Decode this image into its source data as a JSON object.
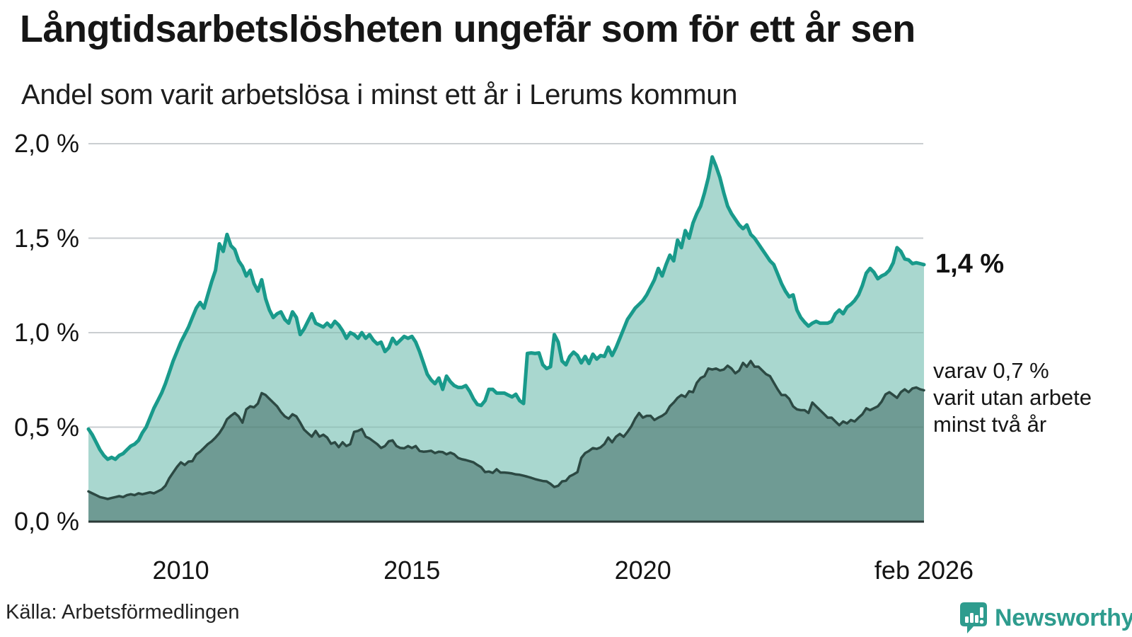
{
  "header": {
    "title": "Långtidsarbetslösheten ungefär som för ett år sen",
    "subtitle": "Andel som varit arbetslösa i minst ett år i Lerums kommun"
  },
  "chart_data": {
    "type": "area",
    "title": "Långtidsarbetslösheten ungefär som för ett år sen",
    "subtitle": "Andel som varit arbetslösa i minst ett år i Lerums kommun",
    "unit": "%",
    "frequency": "monthly",
    "x_start": "2008-01",
    "x_end": "2026-02",
    "ylim": [
      0,
      2.0
    ],
    "grid": true,
    "y_tick_labels": [
      "2,0 %",
      "1,5 %",
      "1,0 %",
      "0,5 %",
      "0,0 %"
    ],
    "y_tick_values": [
      2.0,
      1.5,
      1.0,
      0.5,
      0.0
    ],
    "x_tick_labels": [
      "2010",
      "2015",
      "2020",
      "feb 2026"
    ],
    "x_tick_months": [
      24,
      84,
      144,
      217
    ],
    "colors": {
      "grid": "#e3e3e7",
      "baseline": "#2b3a37",
      "text": "#191919",
      "brand": "#2e9c8e"
    },
    "series": [
      {
        "name": "arbetslösa minst ett år",
        "line_color": "#199a8b",
        "fill_color": "#a9d7cf",
        "line_width": 5,
        "values": [
          0.49,
          0.46,
          0.42,
          0.38,
          0.35,
          0.33,
          0.34,
          0.33,
          0.35,
          0.36,
          0.38,
          0.4,
          0.41,
          0.43,
          0.47,
          0.5,
          0.55,
          0.6,
          0.64,
          0.68,
          0.73,
          0.79,
          0.85,
          0.9,
          0.95,
          0.99,
          1.03,
          1.08,
          1.13,
          1.16,
          1.13,
          1.2,
          1.27,
          1.33,
          1.47,
          1.43,
          1.52,
          1.46,
          1.44,
          1.38,
          1.35,
          1.3,
          1.33,
          1.26,
          1.22,
          1.28,
          1.18,
          1.12,
          1.08,
          1.1,
          1.11,
          1.07,
          1.05,
          1.11,
          1.08,
          0.99,
          1.02,
          1.06,
          1.1,
          1.05,
          1.04,
          1.03,
          1.05,
          1.03,
          1.06,
          1.04,
          1.01,
          0.97,
          1.0,
          0.99,
          0.97,
          1.0,
          0.97,
          0.99,
          0.96,
          0.94,
          0.95,
          0.9,
          0.92,
          0.97,
          0.94,
          0.96,
          0.98,
          0.97,
          0.98,
          0.95,
          0.9,
          0.84,
          0.78,
          0.75,
          0.73,
          0.76,
          0.7,
          0.77,
          0.74,
          0.72,
          0.71,
          0.71,
          0.72,
          0.69,
          0.65,
          0.62,
          0.615,
          0.64,
          0.7,
          0.7,
          0.68,
          0.68,
          0.68,
          0.67,
          0.66,
          0.674,
          0.64,
          0.625,
          0.89,
          0.893,
          0.89,
          0.893,
          0.83,
          0.81,
          0.82,
          0.99,
          0.95,
          0.85,
          0.83,
          0.874,
          0.897,
          0.879,
          0.84,
          0.874,
          0.837,
          0.886,
          0.86,
          0.879,
          0.874,
          0.923,
          0.879,
          0.92,
          0.97,
          1.02,
          1.07,
          1.1,
          1.13,
          1.15,
          1.17,
          1.2,
          1.24,
          1.28,
          1.34,
          1.3,
          1.36,
          1.41,
          1.38,
          1.49,
          1.45,
          1.54,
          1.5,
          1.58,
          1.63,
          1.67,
          1.74,
          1.82,
          1.93,
          1.88,
          1.82,
          1.74,
          1.67,
          1.63,
          1.6,
          1.57,
          1.55,
          1.57,
          1.52,
          1.5,
          1.47,
          1.44,
          1.41,
          1.38,
          1.36,
          1.31,
          1.26,
          1.22,
          1.19,
          1.2,
          1.12,
          1.08,
          1.055,
          1.035,
          1.05,
          1.06,
          1.05,
          1.05,
          1.05,
          1.06,
          1.1,
          1.12,
          1.1,
          1.135,
          1.15,
          1.17,
          1.2,
          1.25,
          1.315,
          1.34,
          1.32,
          1.285,
          1.3,
          1.31,
          1.33,
          1.37,
          1.45,
          1.43,
          1.39,
          1.385,
          1.365,
          1.37,
          1.365,
          1.36
        ]
      },
      {
        "name": "varav arbetslösa minst två år",
        "line_color": "#2c4943",
        "fill_color": "#6f9b94",
        "line_width": 3.5,
        "values": [
          0.16,
          0.15,
          0.14,
          0.13,
          0.125,
          0.12,
          0.125,
          0.13,
          0.135,
          0.13,
          0.14,
          0.145,
          0.14,
          0.15,
          0.145,
          0.15,
          0.155,
          0.15,
          0.16,
          0.17,
          0.19,
          0.23,
          0.26,
          0.29,
          0.314,
          0.3,
          0.318,
          0.32,
          0.355,
          0.37,
          0.39,
          0.41,
          0.425,
          0.445,
          0.468,
          0.5,
          0.542,
          0.56,
          0.575,
          0.557,
          0.524,
          0.594,
          0.61,
          0.605,
          0.625,
          0.68,
          0.67,
          0.65,
          0.63,
          0.61,
          0.58,
          0.557,
          0.545,
          0.568,
          0.557,
          0.524,
          0.487,
          0.468,
          0.45,
          0.48,
          0.45,
          0.46,
          0.445,
          0.412,
          0.42,
          0.394,
          0.42,
          0.4,
          0.41,
          0.475,
          0.48,
          0.49,
          0.45,
          0.44,
          0.425,
          0.41,
          0.39,
          0.4,
          0.425,
          0.43,
          0.4,
          0.39,
          0.388,
          0.4,
          0.39,
          0.4,
          0.374,
          0.37,
          0.372,
          0.375,
          0.363,
          0.37,
          0.368,
          0.356,
          0.365,
          0.356,
          0.337,
          0.33,
          0.326,
          0.32,
          0.314,
          0.3,
          0.288,
          0.262,
          0.265,
          0.258,
          0.277,
          0.26,
          0.26,
          0.258,
          0.255,
          0.25,
          0.248,
          0.243,
          0.238,
          0.232,
          0.225,
          0.22,
          0.215,
          0.213,
          0.2,
          0.183,
          0.19,
          0.213,
          0.216,
          0.24,
          0.25,
          0.262,
          0.337,
          0.363,
          0.374,
          0.389,
          0.385,
          0.393,
          0.411,
          0.445,
          0.42,
          0.449,
          0.464,
          0.449,
          0.475,
          0.505,
          0.545,
          0.575,
          0.55,
          0.56,
          0.56,
          0.538,
          0.55,
          0.56,
          0.575,
          0.61,
          0.63,
          0.655,
          0.67,
          0.66,
          0.69,
          0.685,
          0.735,
          0.76,
          0.77,
          0.81,
          0.805,
          0.81,
          0.8,
          0.805,
          0.825,
          0.81,
          0.785,
          0.8,
          0.84,
          0.82,
          0.85,
          0.82,
          0.82,
          0.8,
          0.78,
          0.77,
          0.735,
          0.7,
          0.67,
          0.67,
          0.65,
          0.61,
          0.594,
          0.59,
          0.59,
          0.575,
          0.63,
          0.61,
          0.59,
          0.57,
          0.55,
          0.55,
          0.53,
          0.51,
          0.53,
          0.52,
          0.538,
          0.53,
          0.55,
          0.568,
          0.6,
          0.59,
          0.6,
          0.61,
          0.635,
          0.673,
          0.685,
          0.67,
          0.655,
          0.685,
          0.7,
          0.685,
          0.705,
          0.71,
          0.7,
          0.695
        ]
      }
    ],
    "annotations": {
      "latest_total_label": "1,4 %",
      "detail_lines": [
        "varav 0,7 %",
        "varit utan arbete",
        "minst två år"
      ]
    }
  },
  "footer": {
    "source": "Källa: Arbetsförmedlingen",
    "brand": "Newsworthy"
  }
}
